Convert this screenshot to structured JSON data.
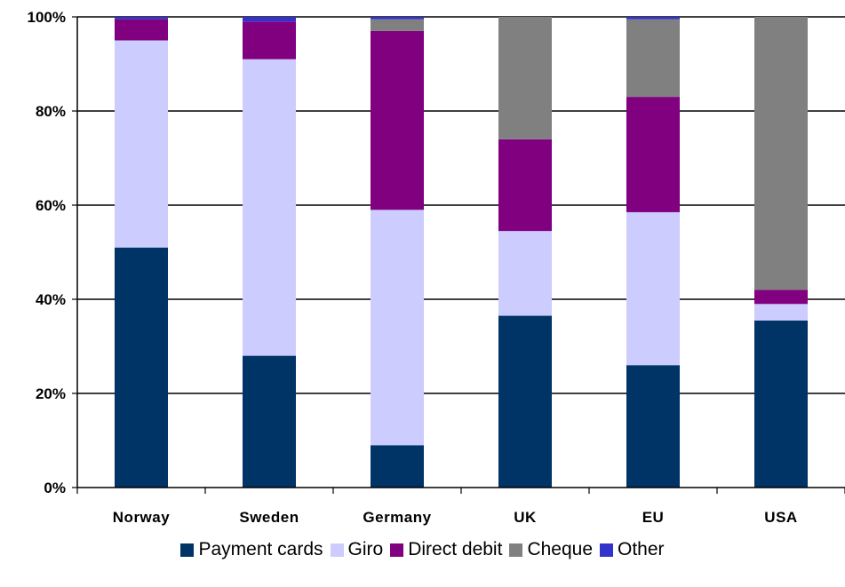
{
  "chart_data": {
    "type": "bar",
    "stacked": true,
    "percent": true,
    "categories": [
      "Norway",
      "Sweden",
      "Germany",
      "UK",
      "EU",
      "USA"
    ],
    "series": [
      {
        "name": "Payment cards",
        "color": "#003366",
        "values": [
          51,
          28,
          9,
          36.5,
          26,
          35.5
        ]
      },
      {
        "name": "Giro",
        "color": "#CCCCFF",
        "values": [
          44,
          63,
          50,
          18,
          32.5,
          3.5
        ]
      },
      {
        "name": "Direct debit",
        "color": "#800080",
        "values": [
          4.5,
          8,
          38,
          19.5,
          24.5,
          3
        ]
      },
      {
        "name": "Cheque",
        "color": "#808080",
        "values": [
          0,
          0,
          2.5,
          26,
          16.5,
          58
        ]
      },
      {
        "name": "Other",
        "color": "#3333CC",
        "values": [
          0.5,
          1,
          0.5,
          0,
          0.5,
          0
        ]
      }
    ],
    "ylim": [
      0,
      100
    ],
    "yticks": [
      "0%",
      "20%",
      "40%",
      "60%",
      "80%",
      "100%"
    ],
    "grid": true,
    "legend": "bottom",
    "title": "",
    "xlabel": "",
    "ylabel": ""
  }
}
